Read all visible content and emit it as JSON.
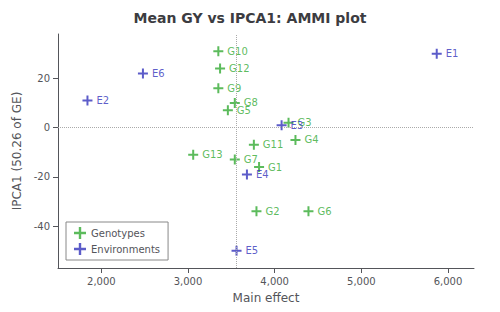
{
  "chart_data": {
    "type": "scatter",
    "title": "Mean GY vs IPCA1: AMMI plot",
    "x_label": "Main effect",
    "y_label": "IPCA1 (50.26 of GE)",
    "xlim": [
      1500,
      6300
    ],
    "ylim": [
      -57,
      38
    ],
    "xticks": [
      2000,
      3000,
      4000,
      5000,
      6000
    ],
    "yticks": [
      -40,
      -20,
      0,
      20
    ],
    "hline": 0,
    "vline": 3560,
    "grid": false,
    "legend": "lower left",
    "marker": "plus",
    "series": [
      {
        "name": "Genotypes",
        "color": "#33aa33",
        "labels": [
          "G1",
          "G2",
          "G3",
          "G4",
          "G5",
          "G6",
          "G7",
          "G8",
          "G9",
          "G10",
          "G11",
          "G12",
          "G13"
        ],
        "x": [
          3820,
          3790,
          4160,
          4240,
          3460,
          4390,
          3540,
          3540,
          3350,
          3350,
          3760,
          3370,
          3060
        ],
        "y": [
          -16,
          -34,
          2,
          -5,
          7,
          -34,
          -13,
          10,
          16,
          31,
          -7,
          24,
          -11
        ]
      },
      {
        "name": "Environments",
        "color": "#3333bb",
        "labels": [
          "E1",
          "E2",
          "E3",
          "E4",
          "E5",
          "E6"
        ],
        "x": [
          5870,
          1840,
          4080,
          3680,
          3560,
          2480
        ],
        "y": [
          30,
          11,
          1,
          -19,
          -50,
          22
        ]
      }
    ]
  }
}
